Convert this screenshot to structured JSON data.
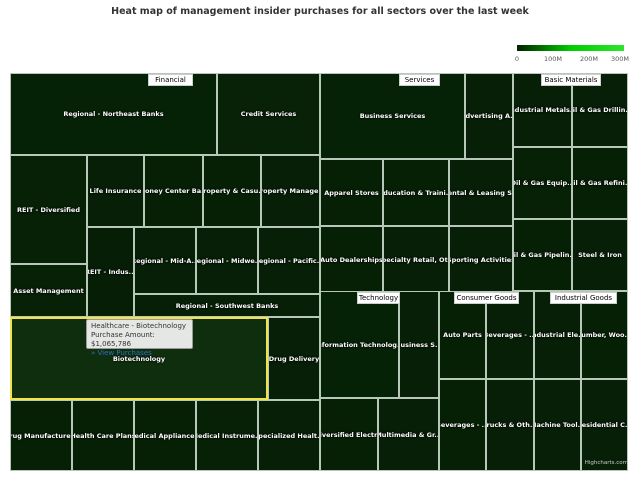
{
  "chart_data": {
    "type": "heatmap",
    "title": "Heat map of management insider purchases for all sectors over the last week",
    "legend": {
      "position": "top-right",
      "min": 0,
      "max": 300000000,
      "tick_labels": [
        "0",
        "100M",
        "200M",
        "300M"
      ],
      "color_min": "#002200",
      "color_max": "#2ee52e"
    },
    "sectors": [
      "Financial",
      "Services",
      "Basic Materials",
      "Technology",
      "Consumer Goods",
      "Industrial Goods"
    ],
    "tooltip": {
      "title": "Healthcare - Biotechnology",
      "line": "Purchase Amount: $1,065,786",
      "link": "» View Purchases"
    },
    "cells": [
      {
        "label": "Regional - Northeast Banks"
      },
      {
        "label": "Credit Services"
      },
      {
        "label": "REIT - Diversified"
      },
      {
        "label": "Life Insurance"
      },
      {
        "label": "Money Center Ba..."
      },
      {
        "label": "Property & Casu..."
      },
      {
        "label": "Property Manage..."
      },
      {
        "label": "REIT - Indus..."
      },
      {
        "label": "Regional - Mid-A..."
      },
      {
        "label": "Regional - Midwe..."
      },
      {
        "label": "Regional - Pacific..."
      },
      {
        "label": "Asset Management"
      },
      {
        "label": "Regional - Southwest Banks"
      },
      {
        "label": "Business Services"
      },
      {
        "label": "Advertising A..."
      },
      {
        "label": "Apparel Stores"
      },
      {
        "label": "Education & Traini..."
      },
      {
        "label": "Rental & Leasing S..."
      },
      {
        "label": "Auto Dealerships"
      },
      {
        "label": "Specialty Retail, Ot..."
      },
      {
        "label": "Sporting Activities"
      },
      {
        "label": "Industrial Metals..."
      },
      {
        "label": "Oil & Gas Drillin..."
      },
      {
        "label": "Oil & Gas Equip..."
      },
      {
        "label": "Oil & Gas Refini..."
      },
      {
        "label": "Oil & Gas Pipelin..."
      },
      {
        "label": "Steel & Iron"
      },
      {
        "label": "Biotechnology"
      },
      {
        "label": "Drug Delivery"
      },
      {
        "label": "Drug Manufacture..."
      },
      {
        "label": "Health Care Plans"
      },
      {
        "label": "Medical Appliance..."
      },
      {
        "label": "Medical Instrume..."
      },
      {
        "label": "Specialized Healt..."
      },
      {
        "label": "Information Technolog..."
      },
      {
        "label": "Business S..."
      },
      {
        "label": "Diversified Electr..."
      },
      {
        "label": "Multimedia & Gr..."
      },
      {
        "label": "Auto Parts"
      },
      {
        "label": "Beverages - ..."
      },
      {
        "label": "Beverages - ..."
      },
      {
        "label": "Trucks & Oth..."
      },
      {
        "label": "Industrial Ele..."
      },
      {
        "label": "Lumber, Woo..."
      },
      {
        "label": "Machine Tool..."
      },
      {
        "label": "Residential C..."
      }
    ]
  },
  "credits": "Highcharts.com"
}
